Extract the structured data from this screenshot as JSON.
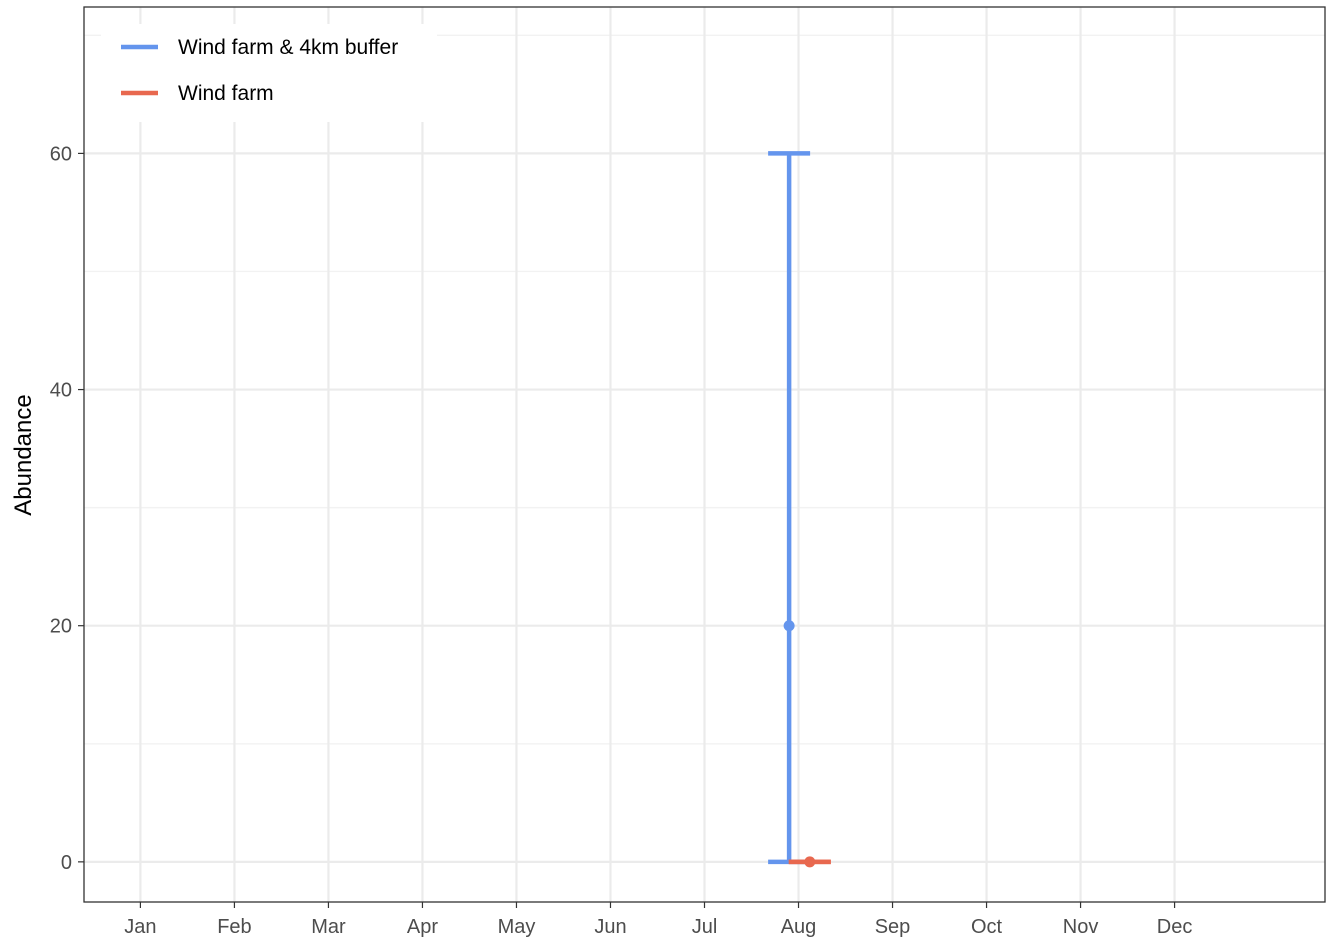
{
  "chart_data": {
    "type": "errorbar",
    "title": "",
    "xlabel": "",
    "ylabel": "Abundance",
    "categories": [
      "Jan",
      "Feb",
      "Mar",
      "Apr",
      "May",
      "Jun",
      "Jul",
      "Aug",
      "Sep",
      "Oct",
      "Nov",
      "Dec"
    ],
    "y_ticks": [
      0,
      20,
      40,
      60
    ],
    "ylim": [
      -3.4,
      72.4
    ],
    "grid": true,
    "legend_position": "top-left",
    "series": [
      {
        "name": "Wind farm & 4km buffer",
        "color": "#6495ED",
        "points": [
          {
            "month": "Aug",
            "x": 7.9,
            "y": 20,
            "ymin": 0,
            "ymax": 60
          }
        ]
      },
      {
        "name": "Wind farm",
        "color": "#E8684F",
        "points": [
          {
            "month": "Aug",
            "x": 8.12,
            "y": 0,
            "ymin": 0,
            "ymax": 0
          }
        ]
      }
    ]
  }
}
